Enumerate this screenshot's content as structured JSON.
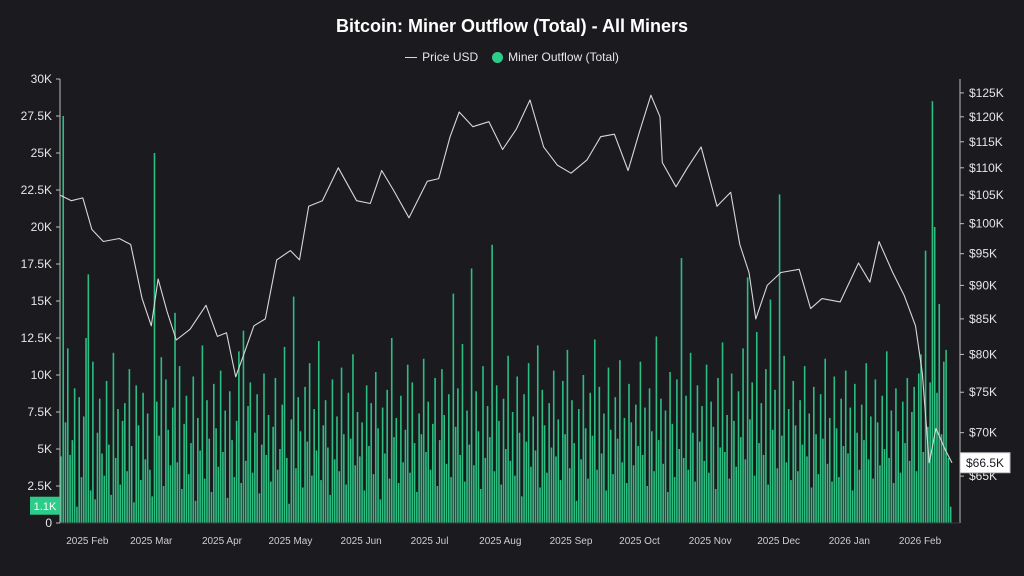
{
  "chart_data": {
    "type": "bar+line",
    "title": "Bitcoin: Miner Outflow (Total) - All Miners",
    "legend": [
      {
        "name": "Price USD",
        "kind": "line",
        "color": "#d8d8d8"
      },
      {
        "name": "Miner Outflow (Total)",
        "kind": "dot",
        "color": "#2ecc8a"
      }
    ],
    "legend_position": "top-center",
    "x_ticks": [
      "2025 Feb",
      "2025 Mar",
      "2025 Apr",
      "2025 May",
      "2025 Jun",
      "2025 Jul",
      "2025 Aug",
      "2025 Sep",
      "2025 Oct",
      "2025 Nov",
      "2025 Dec",
      "2026 Jan",
      "2026 Feb"
    ],
    "x_range": [
      "2025-01-20",
      "2026-02-15"
    ],
    "left_axis": {
      "ticks": [
        "0",
        "2.5K",
        "5K",
        "7.5K",
        "10K",
        "12.5K",
        "15K",
        "17.5K",
        "20K",
        "22.5K",
        "25K",
        "27.5K",
        "30K"
      ],
      "ylim": [
        0,
        30000
      ]
    },
    "right_axis": {
      "ticks": [
        "$65K",
        "$70K",
        "$75K",
        "$80K",
        "$85K",
        "$90K",
        "$95K",
        "$100K",
        "$105K",
        "$110K",
        "$115K",
        "$120K",
        "$125K"
      ],
      "scale": "log",
      "ylim": [
        60000,
        128000
      ]
    },
    "current_outflow_label": "1.1K",
    "current_price_label": "$66.5K",
    "grid": false,
    "series": [
      {
        "name": "Price USD",
        "color": "#d8d8d8",
        "points": [
          [
            "2025-01-20",
            105000
          ],
          [
            "2025-01-25",
            104000
          ],
          [
            "2025-01-30",
            104500
          ],
          [
            "2025-02-03",
            99000
          ],
          [
            "2025-02-08",
            97000
          ],
          [
            "2025-02-15",
            97500
          ],
          [
            "2025-02-20",
            96500
          ],
          [
            "2025-02-25",
            88000
          ],
          [
            "2025-03-01",
            84000
          ],
          [
            "2025-03-04",
            91000
          ],
          [
            "2025-03-08",
            86000
          ],
          [
            "2025-03-12",
            82000
          ],
          [
            "2025-03-18",
            83500
          ],
          [
            "2025-03-25",
            87000
          ],
          [
            "2025-03-30",
            82500
          ],
          [
            "2025-04-03",
            83000
          ],
          [
            "2025-04-07",
            77000
          ],
          [
            "2025-04-10",
            79500
          ],
          [
            "2025-04-15",
            84000
          ],
          [
            "2025-04-20",
            85000
          ],
          [
            "2025-04-25",
            94000
          ],
          [
            "2025-05-01",
            95500
          ],
          [
            "2025-05-05",
            94000
          ],
          [
            "2025-05-09",
            103000
          ],
          [
            "2025-05-15",
            104000
          ],
          [
            "2025-05-22",
            110000
          ],
          [
            "2025-05-30",
            104000
          ],
          [
            "2025-06-05",
            103500
          ],
          [
            "2025-06-10",
            109500
          ],
          [
            "2025-06-15",
            106000
          ],
          [
            "2025-06-22",
            101000
          ],
          [
            "2025-06-30",
            107500
          ],
          [
            "2025-07-05",
            108000
          ],
          [
            "2025-07-10",
            116000
          ],
          [
            "2025-07-14",
            121000
          ],
          [
            "2025-07-20",
            118000
          ],
          [
            "2025-07-27",
            119000
          ],
          [
            "2025-08-02",
            113500
          ],
          [
            "2025-08-08",
            117500
          ],
          [
            "2025-08-14",
            123500
          ],
          [
            "2025-08-20",
            114000
          ],
          [
            "2025-08-26",
            110500
          ],
          [
            "2025-09-01",
            109000
          ],
          [
            "2025-09-08",
            111500
          ],
          [
            "2025-09-14",
            116000
          ],
          [
            "2025-09-20",
            116500
          ],
          [
            "2025-09-26",
            109500
          ],
          [
            "2025-10-01",
            117000
          ],
          [
            "2025-10-06",
            124500
          ],
          [
            "2025-10-10",
            120000
          ],
          [
            "2025-10-11",
            111000
          ],
          [
            "2025-10-17",
            106500
          ],
          [
            "2025-10-22",
            110000
          ],
          [
            "2025-10-28",
            114000
          ],
          [
            "2025-11-04",
            103000
          ],
          [
            "2025-11-10",
            105500
          ],
          [
            "2025-11-14",
            96500
          ],
          [
            "2025-11-18",
            92000
          ],
          [
            "2025-11-21",
            85000
          ],
          [
            "2025-11-26",
            90000
          ],
          [
            "2025-12-02",
            92000
          ],
          [
            "2025-12-10",
            92500
          ],
          [
            "2025-12-15",
            86500
          ],
          [
            "2025-12-20",
            88000
          ],
          [
            "2025-12-28",
            87500
          ],
          [
            "2026-01-05",
            93500
          ],
          [
            "2026-01-10",
            90500
          ],
          [
            "2026-01-14",
            97000
          ],
          [
            "2026-01-20",
            92000
          ],
          [
            "2026-01-25",
            88500
          ],
          [
            "2026-01-30",
            84000
          ],
          [
            "2026-02-02",
            77500
          ],
          [
            "2026-02-05",
            66500
          ],
          [
            "2026-02-08",
            70500
          ],
          [
            "2026-02-12",
            68000
          ],
          [
            "2026-02-15",
            66500
          ]
        ]
      },
      {
        "name": "Miner Outflow (Total)",
        "color": "#2ecc8a",
        "bars_per_day": true,
        "values": [
          4500,
          27500,
          6800,
          11800,
          4600,
          5600,
          9100,
          1100,
          8500,
          3100,
          7200,
          12500,
          16800,
          2200,
          10900,
          1600,
          6100,
          8400,
          4700,
          3200,
          9600,
          5300,
          1900,
          11500,
          4400,
          7700,
          2600,
          6900,
          8100,
          3500,
          10400,
          5200,
          1400,
          9300,
          6600,
          2900,
          8800,
          4300,
          7400,
          3600,
          1800,
          25000,
          8200,
          5900,
          11200,
          2500,
          9700,
          6300,
          3900,
          7800,
          14200,
          4100,
          10600,
          2300,
          6700,
          8600,
          3300,
          5400,
          9900,
          1500,
          7100,
          4900,
          12000,
          3000,
          8300,
          5700,
          2100,
          9400,
          6400,
          3800,
          10300,
          4800,
          7600,
          1700,
          8900,
          5600,
          3100,
          6900,
          11600,
          2700,
          13000,
          4200,
          7900,
          9500,
          3400,
          6100,
          8700,
          2000,
          5300,
          10100,
          4600,
          7300,
          2800,
          6500,
          9800,
          3600,
          5000,
          8000,
          11900,
          4400,
          1300,
          7000,
          15300,
          3700,
          8500,
          6200,
          2400,
          9200,
          5500,
          10800,
          3200,
          7700,
          4900,
          12300,
          2900,
          6600,
          8300,
          5100,
          1900,
          9700,
          4300,
          7200,
          3500,
          10500,
          6000,
          2600,
          8800,
          5700,
          11400,
          3900,
          7500,
          4500,
          6800,
          2200,
          9300,
          5200,
          8100,
          3300,
          10200,
          6400,
          1600,
          7800,
          4700,
          9000,
          3000,
          12500,
          5800,
          7100,
          2700,
          8600,
          4100,
          6300,
          10700,
          3400,
          9500,
          5400,
          2100,
          7400,
          6000,
          11100,
          4800,
          8200,
          3600,
          6700,
          9800,
          2500,
          5600,
          10400,
          7300,
          4000,
          8700,
          3100,
          15500,
          6500,
          9100,
          4600,
          12100,
          2800,
          7600,
          5300,
          17200,
          3900,
          8900,
          6200,
          2300,
          10600,
          4400,
          7900,
          5800,
          18800,
          3500,
          9300,
          6900,
          2600,
          8400,
          5000,
          11300,
          4200,
          7500,
          3200,
          9900,
          6100,
          1800,
          8700,
          5500,
          10800,
          3800,
          7200,
          4900,
          12000,
          2400,
          9000,
          6600,
          3400,
          8100,
          5100,
          10300,
          4500,
          7000,
          2900,
          9600,
          6000,
          11700,
          3700,
          8300,
          5400,
          1500,
          7700,
          4300,
          10000,
          6400,
          3000,
          8800,
          5900,
          12400,
          3600,
          9200,
          4700,
          7400,
          2200,
          10500,
          6300,
          3300,
          8500,
          5700,
          11000,
          4100,
          7100,
          2700,
          9400,
          6800,
          3900,
          8000,
          5200,
          10900,
          4600,
          7800,
          2500,
          9100,
          6200,
          3500,
          12600,
          5600,
          8400,
          4000,
          7600,
          2100,
          10200,
          6700,
          3100,
          9700,
          5000,
          17900,
          4400,
          8600,
          3600,
          11500,
          6100,
          2800,
          9300,
          5500,
          7900,
          4200,
          10700,
          3400,
          8200,
          6500,
          2300,
          9800,
          5100,
          12200,
          4800,
          7300,
          3000,
          10100,
          6900,
          3800,
          8900,
          5800,
          11800,
          4300,
          16600,
          7000,
          9500,
          3200,
          12900,
          5400,
          8100,
          4600,
          10400,
          2600,
          15100,
          6300,
          9000,
          3700,
          22200,
          5900,
          11300,
          4100,
          7700,
          2900,
          9600,
          6600,
          3500,
          8300,
          5300,
          10600,
          4500,
          7400,
          2400,
          9200,
          6000,
          3300,
          8700,
          5700,
          11100,
          4000,
          7100,
          2800,
          9900,
          6400,
          3100,
          8400,
          5200,
          10300,
          4700,
          7800,
          2200,
          9400,
          6100,
          3600,
          8000,
          5600,
          10800,
          4300,
          7200,
          3000,
          9700,
          6800,
          3900,
          8600,
          5000,
          11600,
          4400,
          7600,
          2700,
          9100,
          6200,
          3400,
          8200,
          5400,
          9800,
          4200,
          7500,
          9200,
          3500,
          10100,
          11400,
          4800,
          18400,
          6500,
          9500,
          28500,
          20000,
          8800,
          14800,
          6000,
          10900,
          11700,
          4400,
          1100
        ]
      }
    ]
  }
}
